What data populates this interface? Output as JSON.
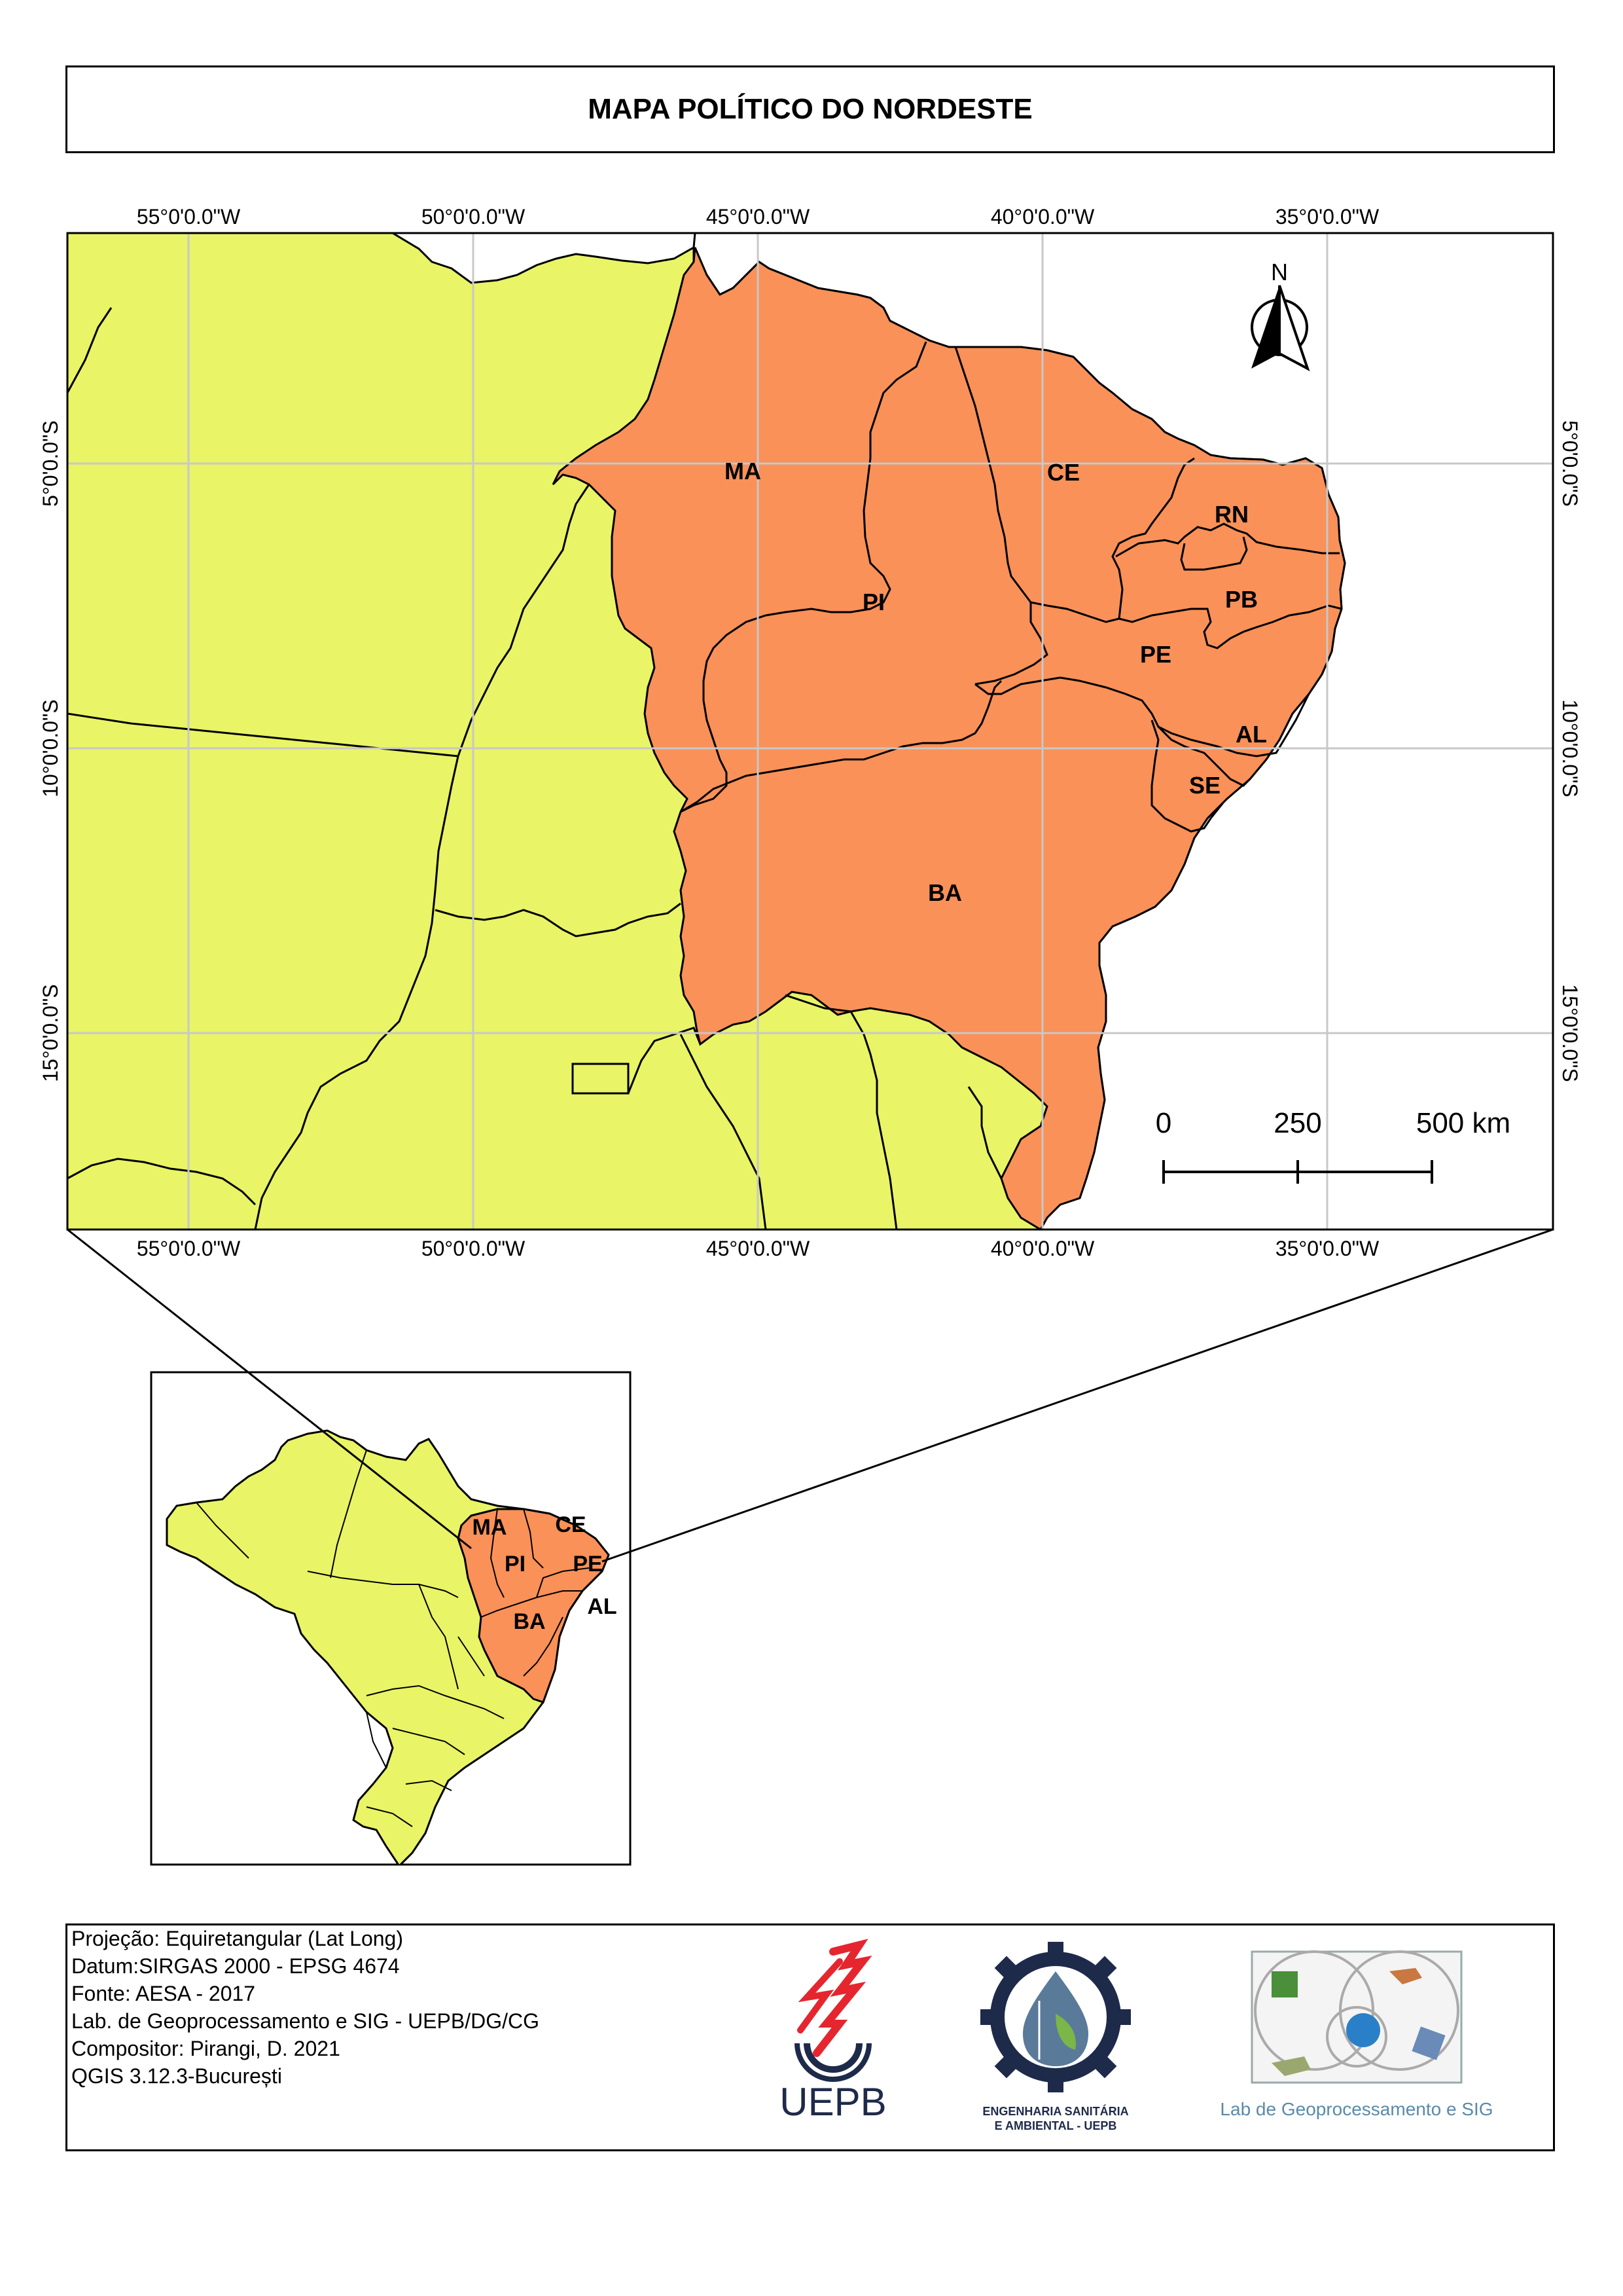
{
  "title": "MAPA POLÍTICO DO NORDESTE",
  "grid": {
    "lon_labels": [
      "55°0'0.0\"W",
      "50°0'0.0\"W",
      "45°0'0.0\"W",
      "40°0'0.0\"W",
      "35°0'0.0\"W"
    ],
    "lat_labels": [
      "5°0'0.0\"S",
      "10°0'0.0\"S",
      "15°0'0.0\"S"
    ]
  },
  "states": [
    "MA",
    "PI",
    "CE",
    "RN",
    "PB",
    "PE",
    "AL",
    "SE",
    "BA"
  ],
  "inset_states": [
    "MA",
    "CE",
    "PI",
    "PE",
    "AL",
    "BA"
  ],
  "north_label": "N",
  "scale_bar": {
    "ticks": [
      "0",
      "250",
      "500 km"
    ]
  },
  "info": {
    "lines": [
      "Projeção: Equiretangular (Lat Long)",
      "Datum:SIRGAS 2000 - EPSG 4674",
      "Fonte: AESA - 2017",
      "Lab. de Geoprocessamento e SIG - UEPB/DG/CG",
      "Compositor: Pirangi, D. 2021",
      "QGIS 3.12.3-București"
    ]
  },
  "logos": {
    "uepb": "UEPB",
    "engenharia_line1": "ENGENHARIA SANITÁRIA",
    "engenharia_line2": "E AMBIENTAL - UEPB",
    "lab": "Lab de Geoprocessamento e SIG"
  },
  "colors": {
    "nordeste": "#f99158",
    "other": "#e9f466",
    "grid": "#c8c8c8"
  }
}
